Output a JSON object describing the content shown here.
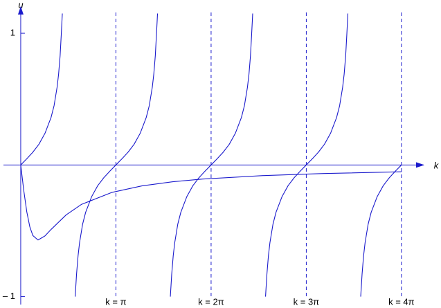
{
  "chart_data": {
    "type": "line",
    "x_label": "k",
    "y_label": "u",
    "xlim": [
      -0.57,
      13.3
    ],
    "ylim": [
      -1.06,
      1.2
    ],
    "xticks": [
      {
        "value": 3.1416,
        "label": "k = π"
      },
      {
        "value": 6.2832,
        "label": "k = 2π"
      },
      {
        "value": 9.4248,
        "label": "k = 3π"
      },
      {
        "value": 12.566,
        "label": "k = 4π"
      }
    ],
    "yticks": [
      {
        "value": -1,
        "label": "– 1"
      },
      1
    ],
    "series": [
      {
        "color": "#1a1acc",
        "x": [
          0,
          0.2,
          0.4,
          0.6,
          0.8,
          1.0,
          1.1,
          1.2,
          1.25,
          1.3,
          1.34,
          1.373
        ],
        "values": [
          0,
          0.047,
          0.097,
          0.157,
          0.24,
          0.36,
          0.45,
          0.59,
          0.69,
          0.83,
          1.0,
          1.15
        ]
      },
      {
        "color": "#1a1acc",
        "x": [
          1.797,
          1.842,
          1.892,
          1.942,
          2.042,
          2.142,
          2.342,
          2.542,
          2.742,
          2.942,
          3.142,
          3.342,
          3.542,
          3.742,
          3.942,
          4.142,
          4.242,
          4.342,
          4.392,
          4.442,
          4.482,
          4.515
        ],
        "values": [
          -1.0,
          -0.83,
          -0.69,
          -0.59,
          -0.45,
          -0.36,
          -0.24,
          -0.157,
          -0.097,
          -0.047,
          0,
          0.047,
          0.097,
          0.157,
          0.24,
          0.36,
          0.45,
          0.59,
          0.69,
          0.83,
          1.0,
          1.15
        ]
      },
      {
        "color": "#1a1acc",
        "x": [
          4.938,
          4.983,
          5.033,
          5.083,
          5.183,
          5.283,
          5.483,
          5.683,
          5.883,
          6.083,
          6.283,
          6.483,
          6.683,
          6.883,
          7.083,
          7.283,
          7.383,
          7.483,
          7.533,
          7.583,
          7.623,
          7.656
        ],
        "values": [
          -1.0,
          -0.83,
          -0.69,
          -0.59,
          -0.45,
          -0.36,
          -0.24,
          -0.157,
          -0.097,
          -0.047,
          0,
          0.047,
          0.097,
          0.157,
          0.24,
          0.36,
          0.45,
          0.59,
          0.69,
          0.83,
          1.0,
          1.15
        ]
      },
      {
        "color": "#1a1acc",
        "x": [
          8.08,
          8.125,
          8.175,
          8.225,
          8.325,
          8.425,
          8.625,
          8.825,
          9.025,
          9.225,
          9.425,
          9.625,
          9.825,
          10.025,
          10.225,
          10.425,
          10.525,
          10.625,
          10.675,
          10.725,
          10.765,
          10.798
        ],
        "values": [
          -1.0,
          -0.83,
          -0.69,
          -0.59,
          -0.45,
          -0.36,
          -0.24,
          -0.157,
          -0.097,
          -0.047,
          0,
          0.047,
          0.097,
          0.157,
          0.24,
          0.36,
          0.45,
          0.59,
          0.69,
          0.83,
          1.0,
          1.15
        ]
      },
      {
        "color": "#1a1acc",
        "x": [
          11.221,
          11.266,
          11.316,
          11.366,
          11.466,
          11.566,
          11.766,
          11.966,
          12.166,
          12.366,
          12.566
        ],
        "values": [
          -1.0,
          -0.83,
          -0.69,
          -0.59,
          -0.45,
          -0.36,
          -0.24,
          -0.157,
          -0.097,
          -0.047,
          0
        ]
      },
      {
        "color": "#1a1acc",
        "x": [
          0,
          0.1,
          0.2,
          0.3,
          0.4,
          0.57,
          0.8,
          1.0,
          1.5,
          2,
          3,
          4,
          5,
          6,
          8,
          10,
          12.566
        ],
        "values": [
          0,
          -0.194,
          -0.356,
          -0.47,
          -0.536,
          -0.57,
          -0.539,
          -0.49,
          -0.379,
          -0.3,
          -0.209,
          -0.159,
          -0.128,
          -0.107,
          -0.081,
          -0.065,
          -0.052
        ]
      }
    ]
  }
}
